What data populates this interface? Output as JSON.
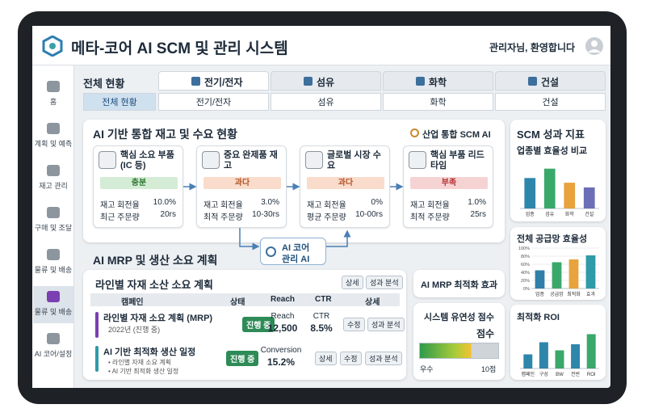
{
  "header": {
    "title": "메타-코어 AI SCM 및 관리 시스템",
    "greeting": "관리자님, 환영합니다"
  },
  "sidebar": {
    "items": [
      "홈",
      "계획 및 예측",
      "재고 관리",
      "구매 및 조달",
      "물류 및 배송",
      "물류 및 배송",
      "AI 코어/설정"
    ]
  },
  "overview": {
    "label": "전체 현황",
    "tabs": [
      "전기/전자",
      "섬유",
      "화학",
      "건설"
    ],
    "subtabs": [
      "전체 현황",
      "전기/전자",
      "섬유",
      "화학",
      "건설"
    ]
  },
  "inventory": {
    "title": "AI 기반 통합 재고 및 수요 현황",
    "badge": "산업 통합 SCM AI",
    "cards": [
      {
        "title": "핵심 소요 부품 (IC 등)",
        "status": "충분",
        "metrics": [
          {
            "label": "재고 회전율",
            "value": "10.0%"
          },
          {
            "label": "최근 주문량",
            "value": "20rs"
          }
        ]
      },
      {
        "title": "중요 완제품 재고",
        "status": "과다",
        "metrics": [
          {
            "label": "재고 회전율",
            "value": "3.0%"
          },
          {
            "label": "최적 주문량",
            "value": "10-30rs"
          }
        ]
      },
      {
        "title": "글로벌 시장 수요",
        "status": "과다",
        "metrics": [
          {
            "label": "재고 회전율",
            "value": "0%"
          },
          {
            "label": "평균 주문량",
            "value": "10-00rs"
          }
        ]
      },
      {
        "title": "핵심 부품 리드타임",
        "status": "부족",
        "metrics": [
          {
            "label": "재고 회전율",
            "value": "1.0%"
          },
          {
            "label": "최적 주문량",
            "value": "25rs"
          }
        ]
      }
    ],
    "core": [
      "AI 코어",
      "관리 AI"
    ]
  },
  "mrp": {
    "section_title": "AI MRP 및 생산 소요 계획",
    "panel_title": "라인별 자재 소산 소요 계획",
    "panel_buttons": [
      "상세",
      "성과 분석"
    ],
    "columns": [
      "캠페인",
      "상태",
      "Reach",
      "CTR",
      "상세"
    ],
    "rows": [
      {
        "name": "라인별 자재 소요 계획 (MRP)",
        "sub": [
          "2022년 (진행 중)"
        ],
        "status": "진행 중",
        "metrics": [
          {
            "label": "Reach",
            "value": "12,500"
          },
          {
            "label": "CTR",
            "value": "8.5%"
          }
        ],
        "buttons": [
          "수정",
          "성과 분석"
        ]
      },
      {
        "name": "AI 기반 최적화 생산 일정",
        "sub": [
          "• 라인별 자재 소요 계획",
          "• AI 기반 최적화 생산 일정"
        ],
        "status": "진행 중",
        "metrics": [
          {
            "label": "Conversion",
            "value": "15.2%"
          }
        ],
        "buttons": [
          "상세",
          "수정",
          "성과 분석"
        ]
      }
    ]
  },
  "effect": {
    "title": "AI MRP 최적화 효과"
  },
  "flexibility": {
    "title": "시스템 유연성 점수",
    "score_label": "점수",
    "scale": [
      "우수",
      "10점"
    ]
  },
  "performance": {
    "title": "SCM 성과 지표",
    "charts": [
      {
        "type": "bar",
        "title": "업종별 효율성 비교",
        "categories": [
          "업종",
          "섬유",
          "화학",
          "건설"
        ],
        "values": [
          65,
          85,
          55,
          45
        ],
        "colors": [
          "#2e86ab",
          "#3aa86b",
          "#e8a33d",
          "#6c6fb6"
        ],
        "ylim": [
          0,
          100
        ]
      },
      {
        "type": "bar",
        "title": "전체 공급망 효율성",
        "categories": [
          "업종",
          "공급망",
          "최적화",
          "효과"
        ],
        "values": [
          45,
          65,
          72,
          82
        ],
        "colors": [
          "#2f7fa8",
          "#3aa86b",
          "#e8a33d",
          "#2f9aa8"
        ],
        "ylim": [
          0,
          100
        ],
        "yticks": [
          {
            "value": 0,
            "label": "0%"
          },
          {
            "value": 20,
            "label": "20%"
          },
          {
            "value": 40,
            "label": "40%"
          },
          {
            "value": 60,
            "label": "60%"
          },
          {
            "value": 80,
            "label": "80%"
          },
          {
            "value": 100,
            "label": "100%"
          }
        ]
      },
      {
        "type": "bar",
        "title": "최적화 ROI",
        "categories": [
          "캠페인",
          "구성",
          "BW",
          "전반",
          "ROI"
        ],
        "values": [
          35,
          65,
          45,
          60,
          85
        ],
        "colors": [
          "#2e86ab",
          "#2e86ab",
          "#3aa86b",
          "#2e86ab",
          "#3aa86b"
        ],
        "ylim": [
          0,
          100
        ]
      }
    ]
  }
}
